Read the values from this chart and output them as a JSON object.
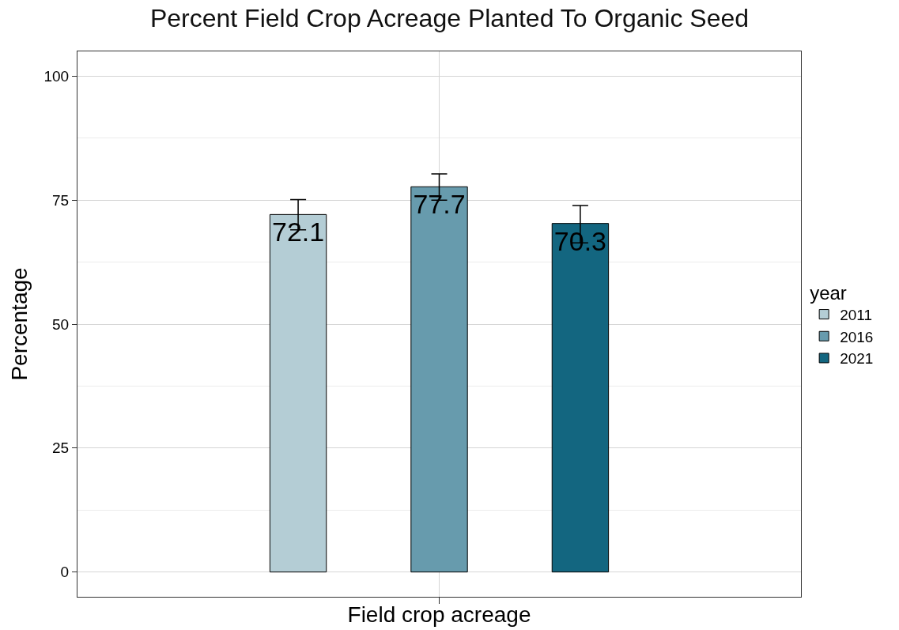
{
  "chart_data": {
    "type": "bar",
    "title": "Percent Field Crop Acreage Planted To Organic Seed",
    "xlabel": "Field crop acreage",
    "ylabel": "Percentage",
    "legend_title": "year",
    "categories": [
      null
    ],
    "series": [
      {
        "name": "2011",
        "color": "#b4cdd5",
        "values": [
          72.1
        ],
        "errors": [
          [
            69.0,
            75.1
          ]
        ]
      },
      {
        "name": "2016",
        "color": "#679bad",
        "values": [
          77.7
        ],
        "errors": [
          [
            75.0,
            80.3
          ]
        ]
      },
      {
        "name": "2021",
        "color": "#136680",
        "values": [
          70.3
        ],
        "errors": [
          [
            66.4,
            73.9
          ]
        ]
      }
    ],
    "ylim": [
      -5,
      105
    ],
    "yticks": [
      0,
      25,
      50,
      75,
      100
    ],
    "grid": true,
    "legend": "right",
    "data_labels": true
  }
}
